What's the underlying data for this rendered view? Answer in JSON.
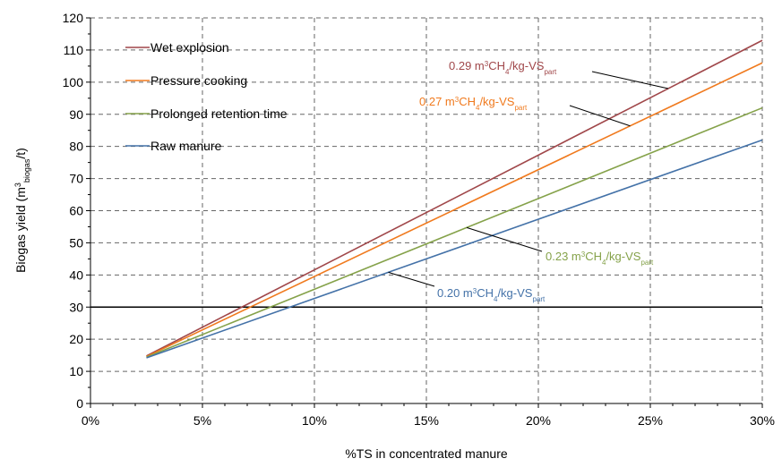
{
  "chart_data": {
    "type": "line",
    "xlabel": "%TS in concentrated manure",
    "ylabel": "Biogas yield (m³biogas/t)",
    "ylabel_parts": {
      "pre": "Biogas yield (m",
      "sup": "3",
      "sub": "biogas",
      "post": "/t)"
    },
    "xlim": [
      0,
      0.3
    ],
    "ylim": [
      0,
      120
    ],
    "x_ticks": [
      0,
      0.05,
      0.1,
      0.15,
      0.2,
      0.25,
      0.3
    ],
    "x_tick_labels": [
      "0%",
      "5%",
      "10%",
      "15%",
      "20%",
      "25%",
      "30%"
    ],
    "y_ticks": [
      0,
      10,
      20,
      30,
      40,
      50,
      60,
      70,
      80,
      90,
      100,
      110,
      120
    ],
    "y_tick_labels": [
      "0",
      "10",
      "20",
      "30",
      "40",
      "50",
      "60",
      "70",
      "80",
      "90",
      "100",
      "110",
      "120"
    ],
    "grid": true,
    "legend_position": "top-left",
    "reference_line": {
      "y": 30,
      "color": "#000000"
    },
    "series": [
      {
        "name": "Wet explosion",
        "color": "#a0474a",
        "x": [
          0.025,
          0.3
        ],
        "y": [
          14.8,
          113
        ],
        "annotation": {
          "pre": "0.29 m",
          "sup": "3",
          "mid": "CH",
          "sub1": "4",
          "post": "/kg-VS",
          "sub2": "part",
          "label": "0.29 m³CH4/kg-VSpart",
          "at_x": 0.258
        }
      },
      {
        "name": "Pressure cooking",
        "color": "#f07a1e",
        "x": [
          0.025,
          0.3
        ],
        "y": [
          14.6,
          106
        ],
        "annotation": {
          "pre": "0.27 m",
          "sup": "3",
          "mid": "CH",
          "sub1": "4",
          "post": "/kg-VS",
          "sub2": "part",
          "label": "0.27 m³CH4/kg-VSpart",
          "at_x": 0.241
        }
      },
      {
        "name": "Prolonged retention time",
        "color": "#85a24a",
        "x": [
          0.025,
          0.3
        ],
        "y": [
          14.4,
          92
        ],
        "annotation": {
          "pre": "0.23 m",
          "sup": "3",
          "mid": "CH",
          "sub1": "4",
          "post": "/kg-VS",
          "sub2": "part",
          "label": "0.23 m³CH4/kg-VSpart",
          "at_x": 0.168
        }
      },
      {
        "name": "Raw manure",
        "color": "#4472a8",
        "x": [
          0.025,
          0.3
        ],
        "y": [
          14.2,
          82
        ],
        "annotation": {
          "pre": "0.20 m",
          "sup": "3",
          "mid": "CH",
          "sub1": "4",
          "post": "/kg-VS",
          "sub2": "part",
          "label": "0.20 m³CH4/kg-VSpart",
          "at_x": 0.133
        }
      }
    ]
  }
}
